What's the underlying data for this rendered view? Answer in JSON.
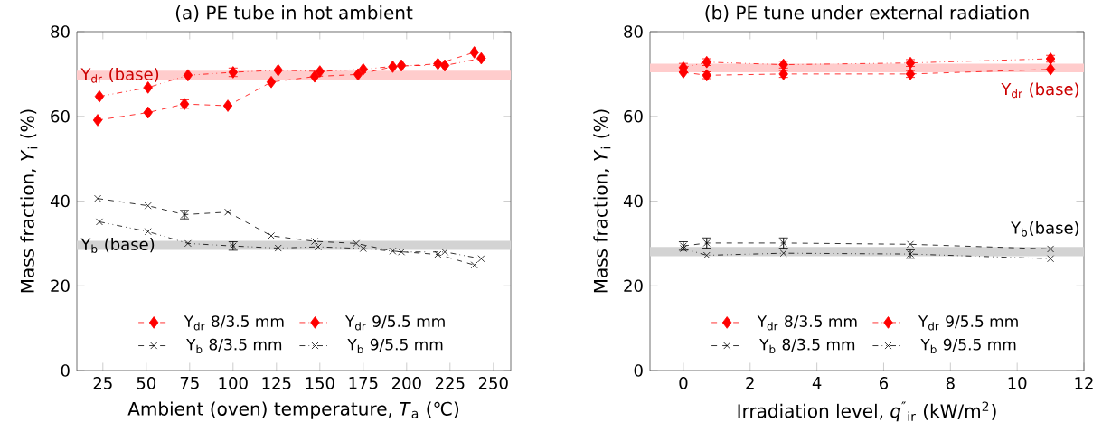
{
  "chart_data": [
    {
      "type": "line",
      "title": "(a) PE tube in hot ambient",
      "xlabel": "Ambient (oven) temperature, *T*$_{a}$ (℃)",
      "ylabel": "Mass fraction, *Y*$_{i}$ (%)",
      "xlim": [
        10,
        260
      ],
      "xticks": [
        25,
        50,
        75,
        100,
        125,
        150,
        175,
        200,
        225,
        250
      ],
      "ylim": [
        0,
        80
      ],
      "yticks": [
        0,
        20,
        40,
        60,
        80
      ],
      "grid": false,
      "legend": "bottom",
      "bands": [
        {
          "axis": "y",
          "from": 68.6,
          "to": 70.8,
          "label": "Y$_{dr}$ (base)",
          "color": "#ffcccc"
        },
        {
          "axis": "y",
          "from": 28.5,
          "to": 30.6,
          "label": "Y$_{b}$ (base)",
          "color": "#d3d3d3"
        }
      ],
      "series": [
        {
          "name": "Y$_{dr}$ 8/3.5 mm",
          "color": "#ff0000",
          "marker": "diamond",
          "line_style": "dashed",
          "x": [
            22,
            51,
            72,
            97,
            122,
            147,
            172,
            192,
            218,
            239
          ],
          "values": [
            59.1,
            60.9,
            62.9,
            62.5,
            68.1,
            69.4,
            69.9,
            71.7,
            72.4,
            75.1
          ],
          "errors": [
            null,
            null,
            1,
            null,
            null,
            null,
            null,
            null,
            null,
            null
          ]
        },
        {
          "name": "Y$_{dr}$ 9/5.5 mm",
          "color": "#ff0000",
          "marker": "diamond",
          "line_style": "dashdot",
          "x": [
            23,
            51,
            74,
            100,
            126,
            150,
            175,
            197,
            222,
            243
          ],
          "values": [
            64.7,
            66.8,
            69.7,
            70.4,
            70.9,
            70.6,
            71.1,
            72.0,
            72.0,
            73.7
          ],
          "errors": [
            null,
            null,
            null,
            1,
            null,
            null,
            null,
            null,
            null,
            null
          ]
        },
        {
          "name": "Y$_{b}$  8/3.5 mm",
          "color": "#000000",
          "marker": "cross",
          "line_style": "dashed",
          "x": [
            22,
            51,
            72,
            97,
            122,
            147,
            171,
            192,
            218,
            239
          ],
          "values": [
            40.6,
            38.9,
            36.8,
            37.4,
            31.8,
            30.5,
            30.0,
            28.2,
            27.4,
            24.9
          ],
          "errors": [
            null,
            null,
            1,
            null,
            null,
            null,
            null,
            null,
            null,
            null
          ]
        },
        {
          "name": "Y$_{b}$  9/5.5 mm",
          "color": "#000000",
          "marker": "cross",
          "line_style": "dashdot",
          "x": [
            23,
            51,
            74,
            100,
            126,
            149,
            175,
            197,
            222,
            243
          ],
          "values": [
            35.1,
            32.8,
            30.0,
            29.4,
            28.9,
            29.2,
            28.8,
            28.0,
            28.0,
            26.4
          ],
          "errors": [
            null,
            null,
            null,
            1,
            null,
            null,
            null,
            null,
            null,
            null
          ]
        }
      ]
    },
    {
      "type": "line",
      "title": "(b) PE tune under external radiation",
      "xlabel": "Irradiation level, *q*$^{″}$$_{ir}$ (kW/m$^{2}$)",
      "ylabel": "Mass fraction, *Y*$_{i}$ (%)",
      "xlim": [
        -1,
        12
      ],
      "xticks": [
        0,
        2,
        4,
        6,
        8,
        10,
        12
      ],
      "ylim": [
        0,
        80
      ],
      "yticks": [
        0,
        20,
        40,
        60,
        80
      ],
      "grid": false,
      "legend": "bottom",
      "bands": [
        {
          "axis": "y",
          "from": 70.4,
          "to": 72.4,
          "label": "Y$_{dr}$ (base)",
          "color": "#ffcccc"
        },
        {
          "axis": "y",
          "from": 27.0,
          "to": 29.2,
          "label": "Y$_{b}$(base)",
          "color": "#d3d3d3"
        }
      ],
      "series": [
        {
          "name": "Y$_{dr}$ 8/3.5 mm",
          "color": "#ff0000",
          "marker": "diamond",
          "line_style": "dashed",
          "x": [
            0,
            0.7,
            3,
            6.8,
            11
          ],
          "values": [
            70.4,
            69.7,
            70.0,
            70.0,
            71.1
          ],
          "errors": [
            null,
            0.8,
            0.8,
            0.8,
            null
          ]
        },
        {
          "name": "Y$_{dr}$ 9/5.5 mm",
          "color": "#ff0000",
          "marker": "diamond",
          "line_style": "dashdot",
          "x": [
            0,
            0.7,
            3,
            6.8,
            11
          ],
          "values": [
            71.5,
            72.8,
            72.2,
            72.6,
            73.6
          ],
          "errors": [
            1,
            0.8,
            0.8,
            0.8,
            0.8
          ]
        },
        {
          "name": "Y$_{b}$  8/3.5 mm",
          "color": "#000000",
          "marker": "cross",
          "line_style": "dashed",
          "x": [
            0,
            0.7,
            3,
            6.8,
            11
          ],
          "values": [
            29.4,
            30.1,
            30.1,
            29.8,
            28.7
          ],
          "errors": [
            1,
            1.2,
            1.2,
            null,
            null
          ]
        },
        {
          "name": "Y$_{b}$  9/5.5 mm",
          "color": "#000000",
          "marker": "cross",
          "line_style": "dashdot",
          "x": [
            0,
            0.7,
            3,
            6.8,
            11
          ],
          "values": [
            28.8,
            27.2,
            27.7,
            27.5,
            26.4
          ],
          "errors": [
            null,
            null,
            null,
            1,
            null
          ]
        }
      ]
    }
  ]
}
